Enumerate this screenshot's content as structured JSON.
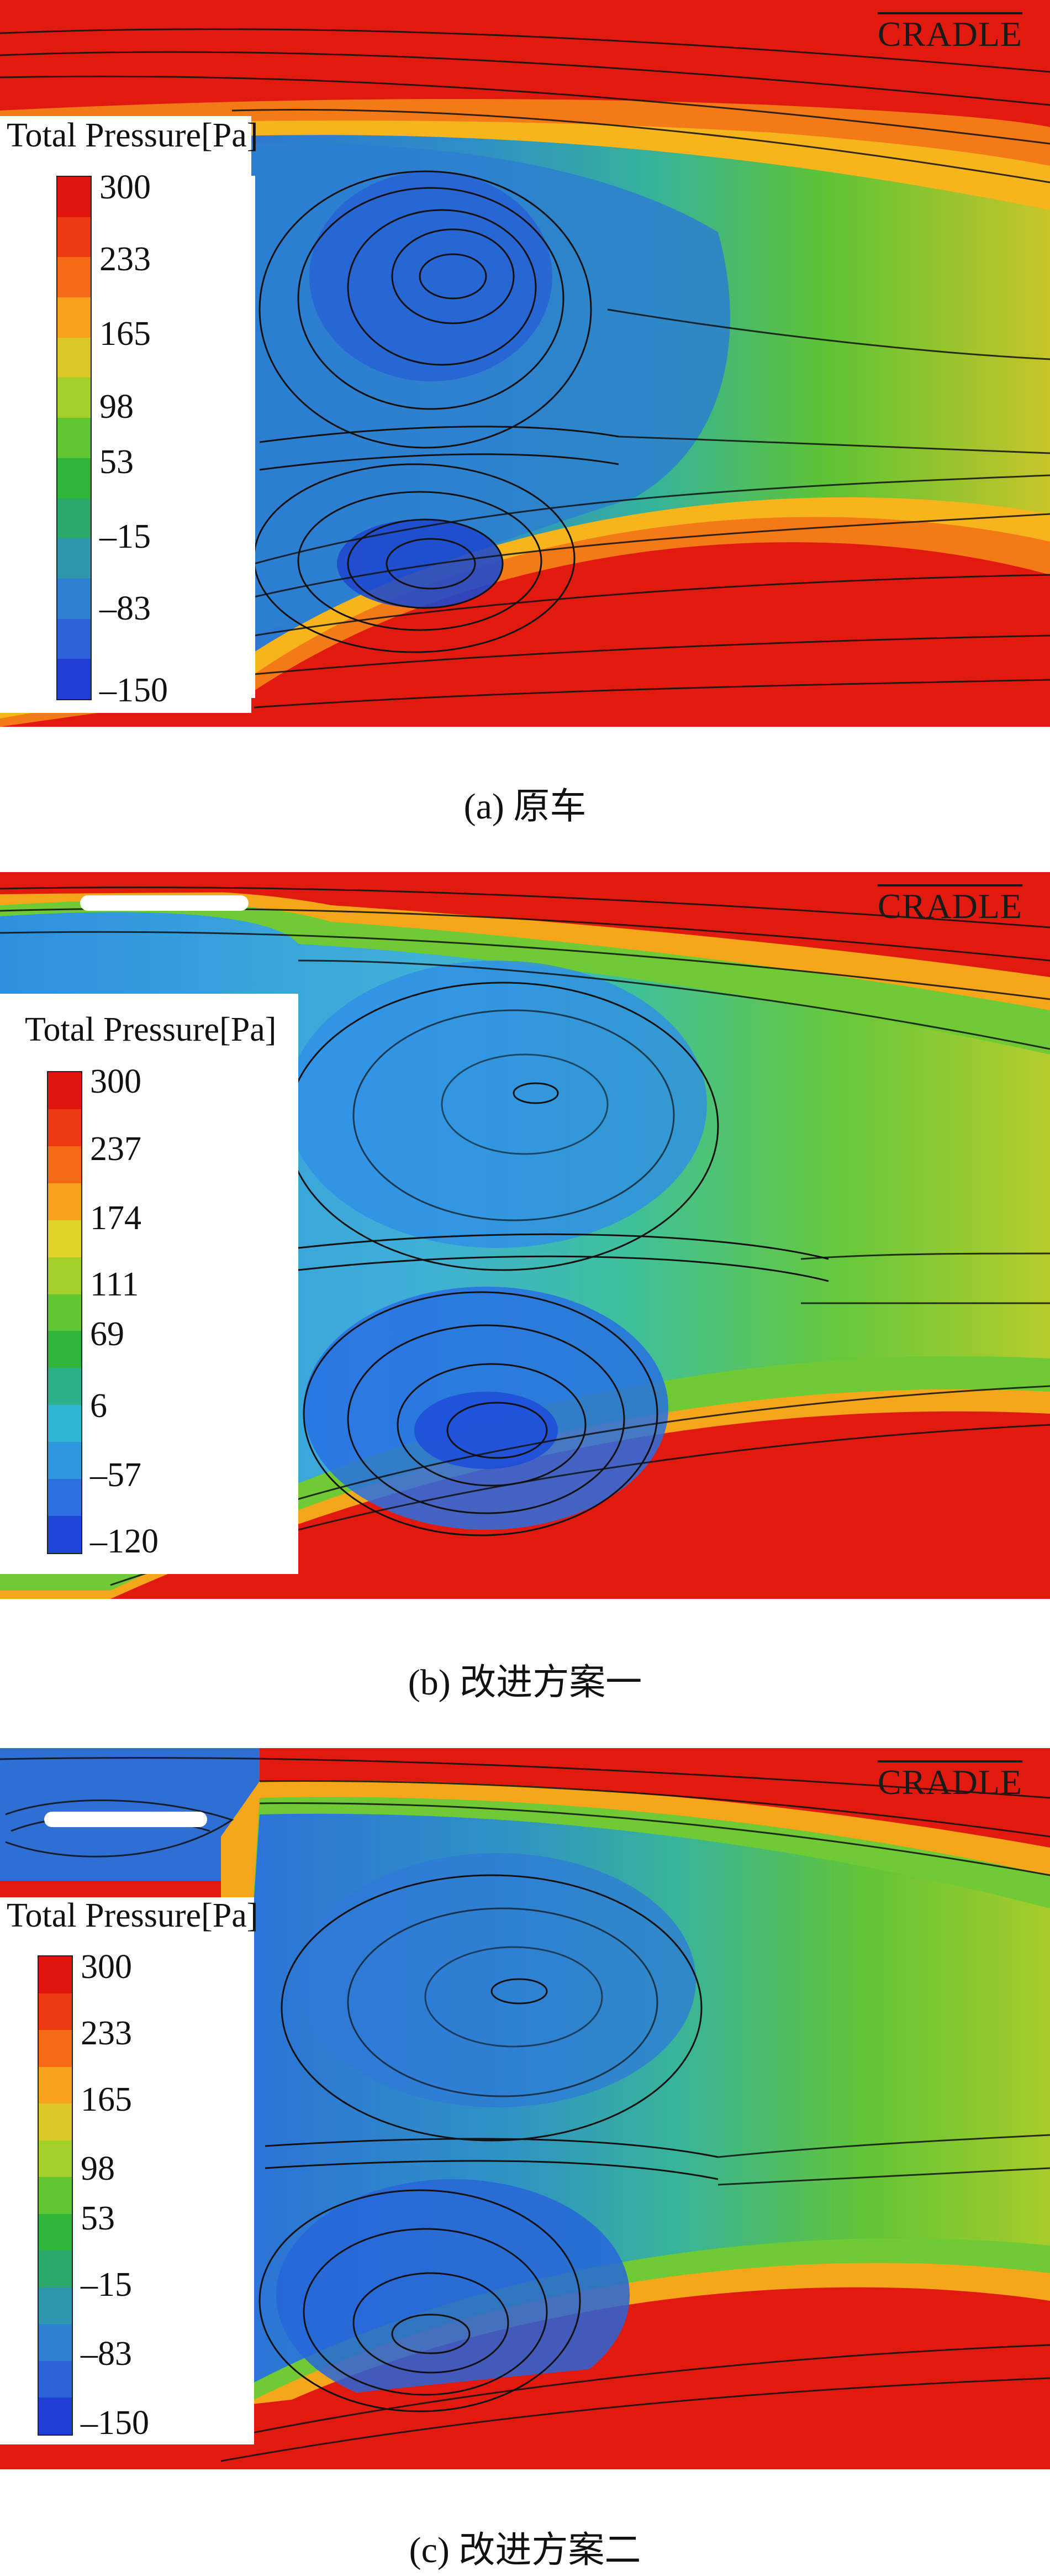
{
  "watermark": "CRADLE",
  "legend_title": "Total Pressure[Pa]",
  "color_stops": [
    "#e1150f",
    "#ee3a10",
    "#f46a17",
    "#f7a11c",
    "#d9c727",
    "#a5cf2b",
    "#5fc531",
    "#2fb63a",
    "#2aa96a",
    "#2f96b0",
    "#2f7fd3",
    "#2c63d9",
    "#1f3fd4"
  ],
  "panels": [
    {
      "ticks": [
        "300",
        "233",
        "165",
        "98",
        "53",
        "–15",
        "–83",
        "–150"
      ],
      "caption": "(a) 原车"
    },
    {
      "ticks": [
        "300",
        "237",
        "174",
        "111",
        "69",
        "6",
        "–57",
        "–120"
      ],
      "caption": "(b) 改进方案一"
    },
    {
      "ticks": [
        "300",
        "233",
        "165",
        "98",
        "53",
        "–15",
        "–83",
        "–150"
      ],
      "caption": "(c) 改进方案二"
    }
  ]
}
